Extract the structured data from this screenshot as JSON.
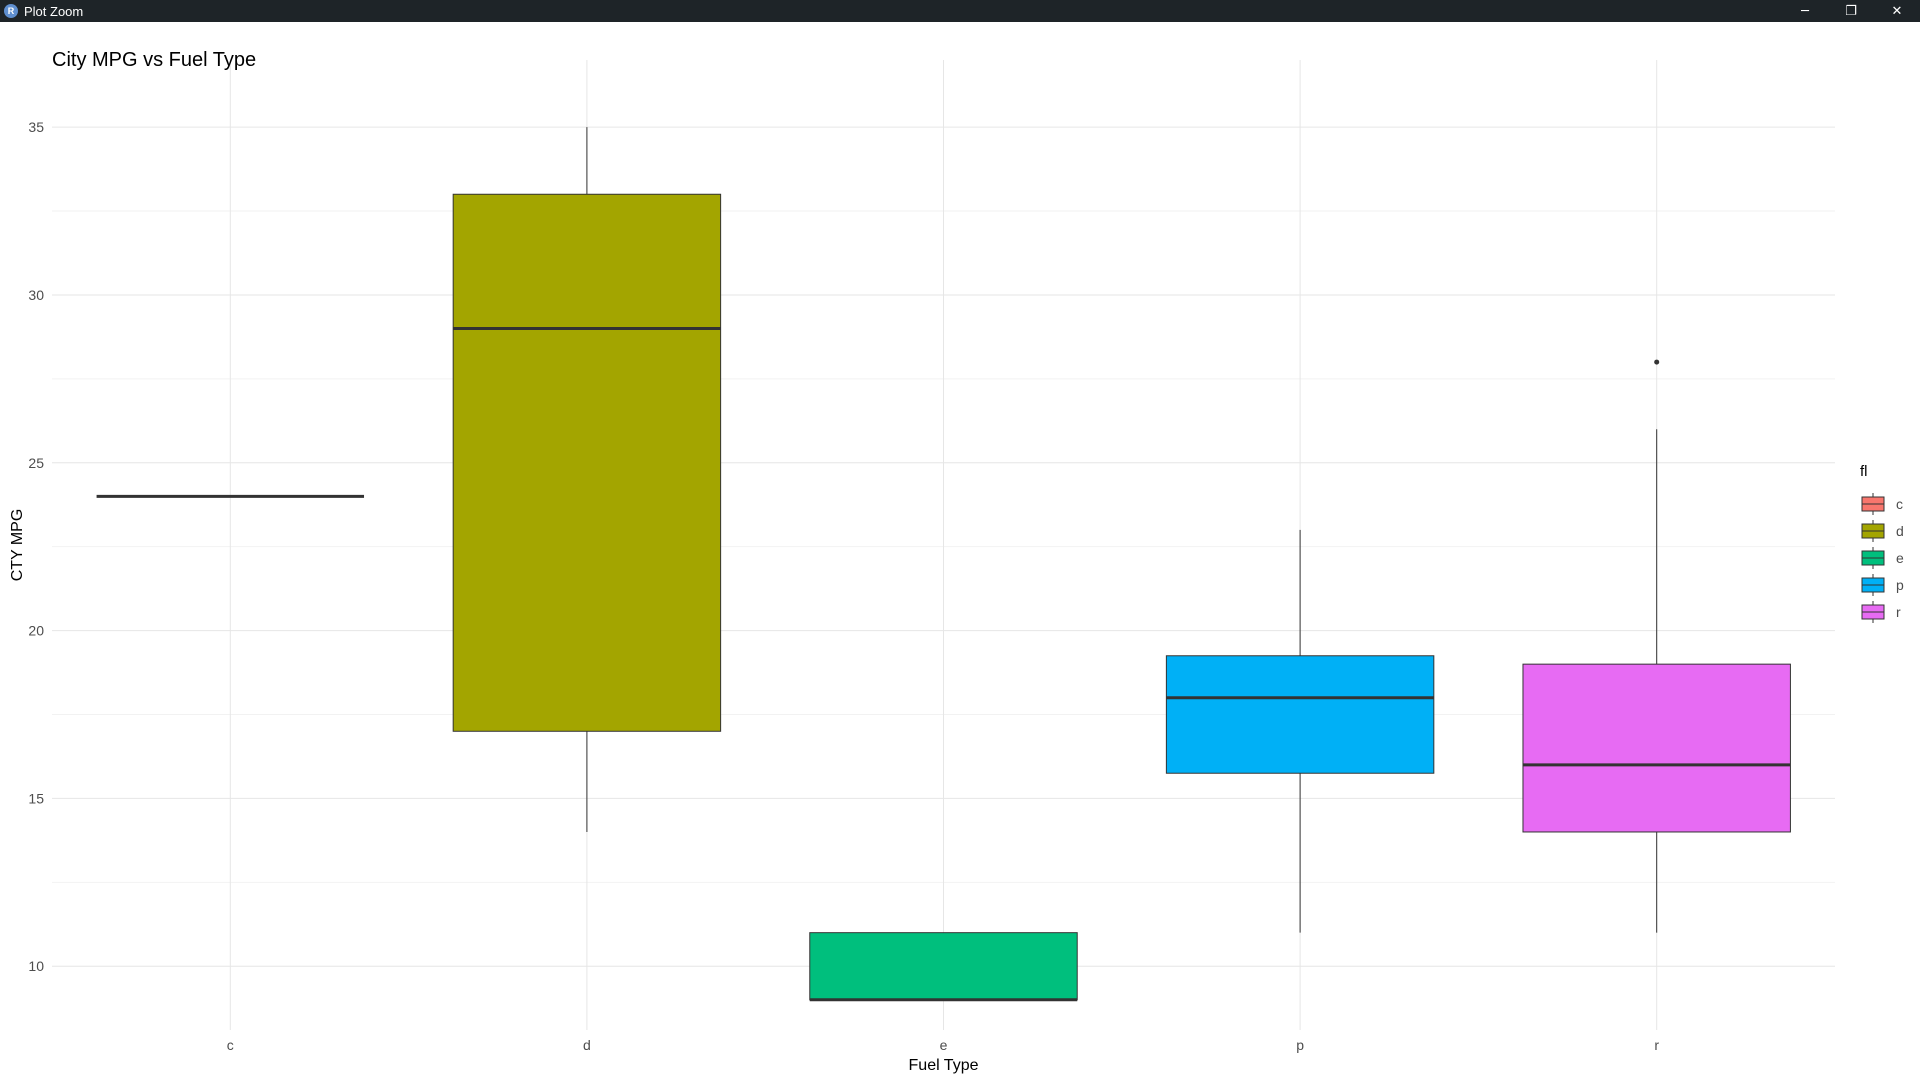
{
  "window": {
    "title": "Plot Zoom",
    "app_icon_letter": "R",
    "minimize_glyph": "─",
    "restore_glyph": "❐",
    "close_glyph": "✕"
  },
  "chart_data": {
    "type": "boxplot",
    "title": "City MPG vs Fuel Type",
    "xlabel": "Fuel Type",
    "ylabel": "CTY MPG",
    "categories": [
      "c",
      "d",
      "e",
      "p",
      "r"
    ],
    "ylim": [
      8.1,
      37.0
    ],
    "yticks": [
      10,
      15,
      20,
      25,
      30,
      35
    ],
    "grid": true,
    "boxes": [
      {
        "category": "c",
        "min": 24,
        "q1": 24,
        "median": 24,
        "q3": 24,
        "max": 24,
        "outliers": [],
        "color": "#F8766D"
      },
      {
        "category": "d",
        "min": 14,
        "q1": 17,
        "median": 29,
        "q3": 33,
        "max": 35,
        "outliers": [],
        "color": "#A3A500"
      },
      {
        "category": "e",
        "min": 9,
        "q1": 9,
        "median": 9,
        "q3": 11,
        "max": 11,
        "outliers": [],
        "color": "#00BF7D"
      },
      {
        "category": "p",
        "min": 11,
        "q1": 15.75,
        "median": 18,
        "q3": 19.25,
        "max": 23,
        "outliers": [],
        "color": "#00B0F6"
      },
      {
        "category": "r",
        "min": 11,
        "q1": 14,
        "median": 16,
        "q3": 19,
        "max": 26,
        "outliers": [
          28
        ],
        "color": "#E76BF3"
      }
    ],
    "legend": {
      "title": "fl",
      "placement": "right",
      "items": [
        {
          "label": "c",
          "color": "#F8766D"
        },
        {
          "label": "d",
          "color": "#A3A500"
        },
        {
          "label": "e",
          "color": "#00BF7D"
        },
        {
          "label": "p",
          "color": "#00B0F6"
        },
        {
          "label": "r",
          "color": "#E76BF3"
        }
      ]
    }
  }
}
